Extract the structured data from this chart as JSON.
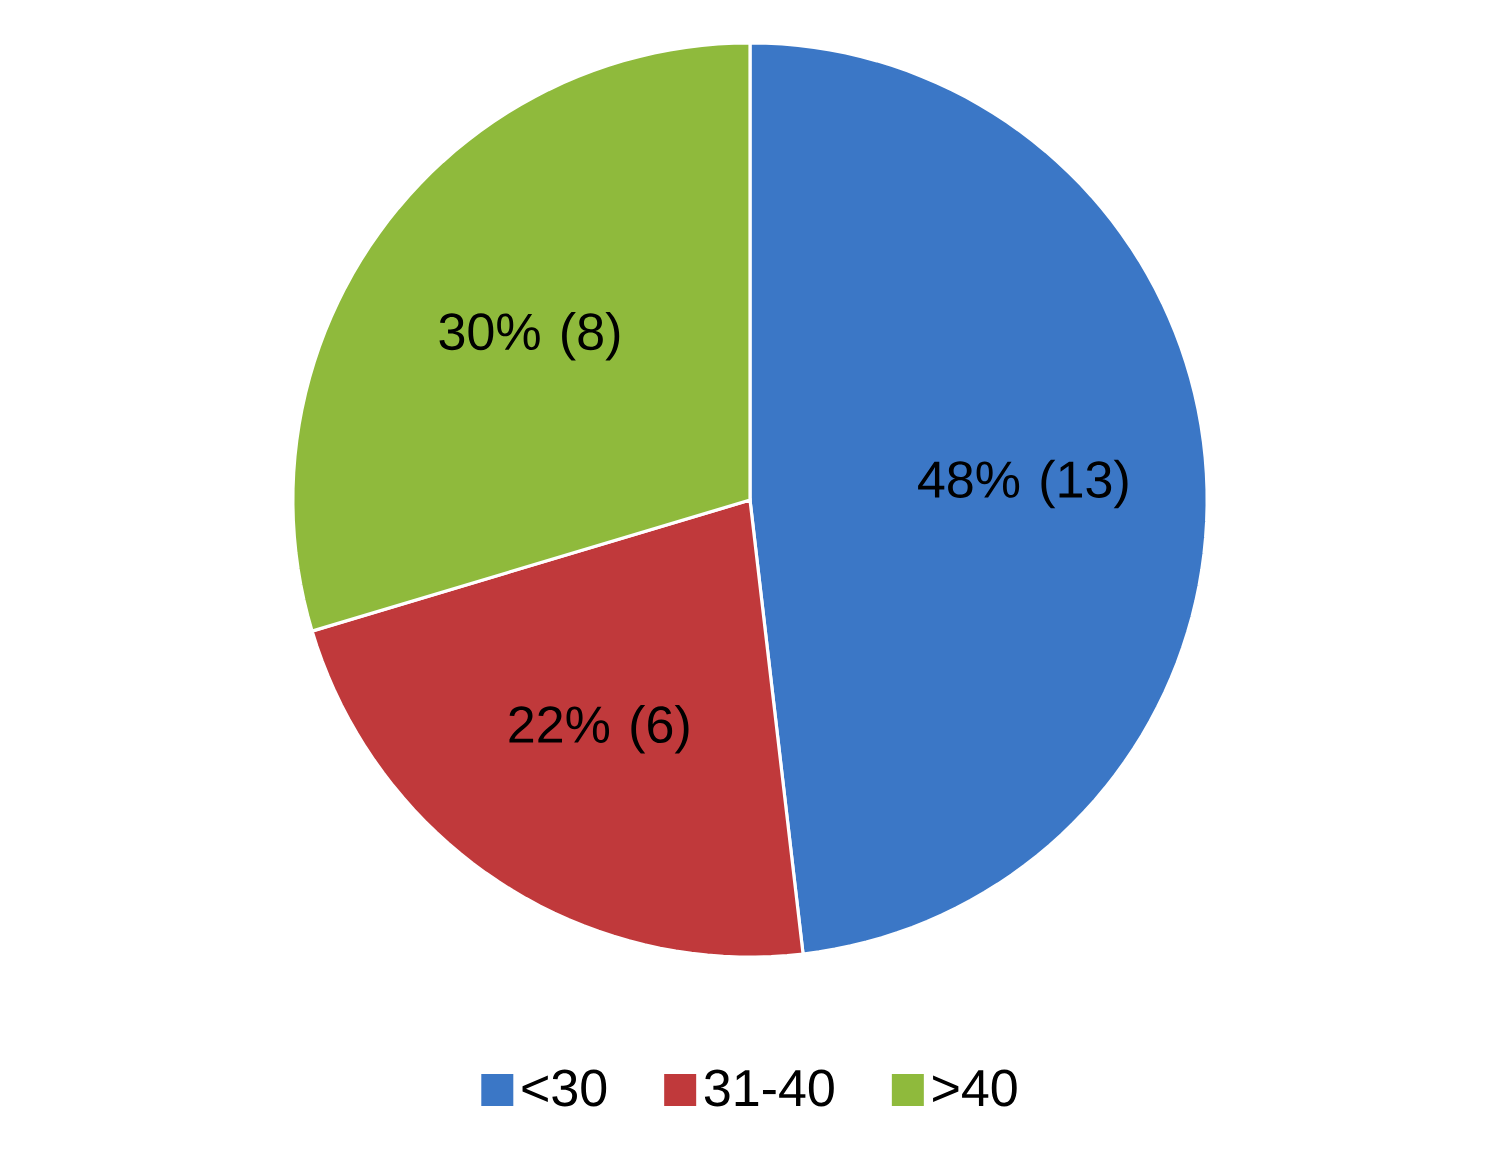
{
  "chart_data": {
    "type": "pie",
    "categories": [
      "<30",
      "31-40",
      ">40"
    ],
    "values": [
      13,
      6,
      8
    ],
    "colors": [
      "#3b77c6",
      "#c0393b",
      "#8fba3c"
    ],
    "value_labels": [
      "48% (13)",
      "22% (6)",
      "30% (8)"
    ],
    "legend": "bottom"
  }
}
